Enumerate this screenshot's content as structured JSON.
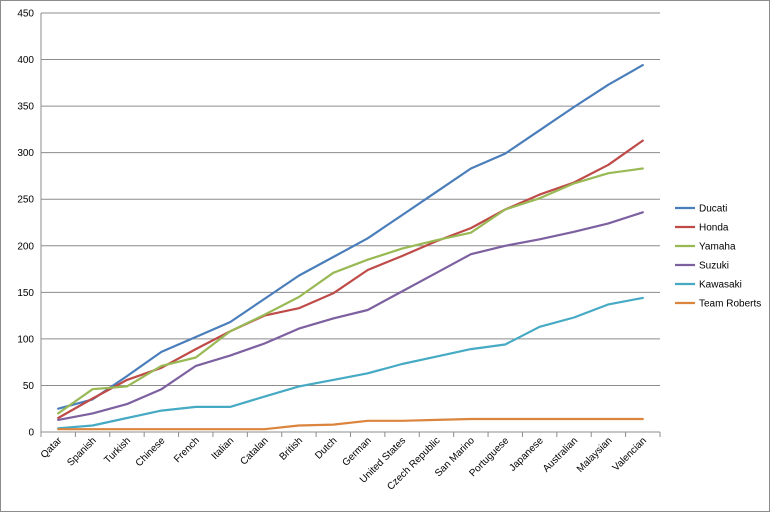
{
  "chart_data": {
    "type": "line",
    "title": "",
    "xlabel": "",
    "ylabel": "",
    "ylim": [
      0,
      450
    ],
    "yticks": [
      0,
      50,
      100,
      150,
      200,
      250,
      300,
      350,
      400,
      450
    ],
    "grid": true,
    "legend_position": "right",
    "categories": [
      "Qatar",
      "Spanish",
      "Turkish",
      "Chinese",
      "French",
      "Italian",
      "Catalan",
      "British",
      "Dutch",
      "German",
      "United States",
      "Czech Republic",
      "San Marino",
      "Portuguese",
      "Japanese",
      "Australian",
      "Malaysian",
      "Valencian"
    ],
    "series": [
      {
        "name": "Ducati",
        "color": "#4A7EBB",
        "values": [
          25,
          35,
          60,
          86,
          102,
          118,
          143,
          168,
          188,
          208,
          233,
          258,
          283,
          299,
          324,
          349,
          373,
          394
        ]
      },
      {
        "name": "Honda",
        "color": "#BE4B48",
        "values": [
          15,
          36,
          56,
          69,
          89,
          108,
          125,
          133,
          149,
          174,
          189,
          205,
          219,
          239,
          255,
          268,
          287,
          313
        ]
      },
      {
        "name": "Yamaha",
        "color": "#98B954",
        "values": [
          20,
          46,
          49,
          71,
          80,
          108,
          126,
          145,
          171,
          185,
          197,
          206,
          214,
          239,
          251,
          267,
          278,
          283
        ]
      },
      {
        "name": "Suzuki",
        "color": "#7D60A0",
        "values": [
          13,
          20,
          30,
          46,
          71,
          82,
          95,
          111,
          122,
          131,
          151,
          171,
          191,
          200,
          207,
          215,
          224,
          236
        ]
      },
      {
        "name": "Kawasaki",
        "color": "#46AAC5",
        "values": [
          4,
          7,
          15,
          23,
          27,
          27,
          38,
          49,
          56,
          63,
          73,
          81,
          89,
          94,
          113,
          123,
          137,
          144
        ]
      },
      {
        "name": "Team Roberts",
        "color": "#DB843D",
        "values": [
          3,
          3,
          3,
          3,
          3,
          3,
          3,
          7,
          8,
          12,
          12,
          13,
          14,
          14,
          14,
          14,
          14,
          14
        ]
      }
    ]
  }
}
